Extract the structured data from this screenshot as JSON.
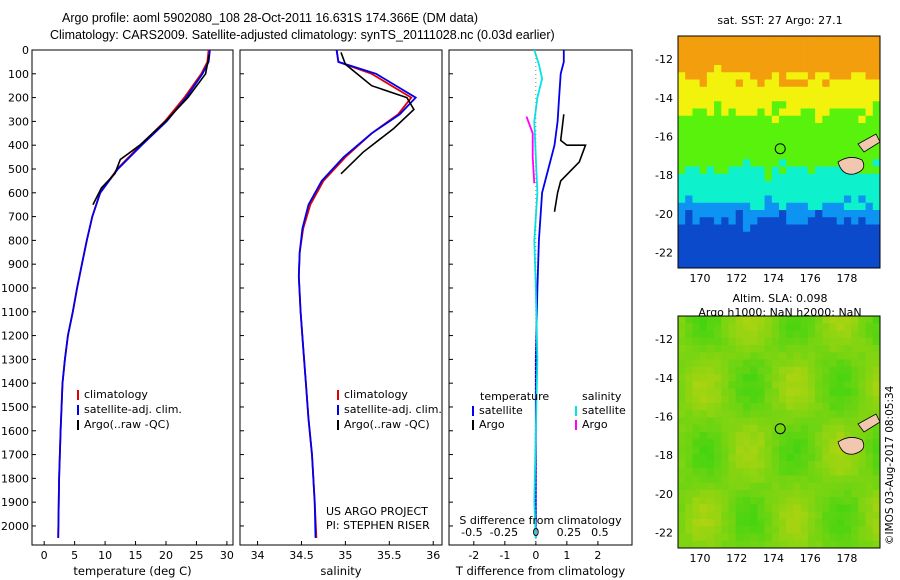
{
  "header": {
    "line1": "Argo profile: aoml 5902080_108 28-Oct-2011 16.631S 174.366E (DM data)",
    "line2": "Climatology: CARS2009. Satellite-adjusted climatology: synTS_20111028.nc (0.03d earlier)"
  },
  "credits": {
    "project": "US ARGO PROJECT",
    "pi": "PI: STEPHEN RISER",
    "watermark": "©IMOS 03-Aug-2017 08:05:34"
  },
  "colors": {
    "climatology": "#e00000",
    "satellite": "#0000ee",
    "argo": "#000000",
    "salinity_diff": "#00e5e5",
    "argo_salinity_diff": "#ff00ff"
  },
  "chart_data": [
    {
      "type": "line",
      "id": "temperature",
      "xlabel": "temperature (deg C)",
      "xlim": [
        -2,
        31
      ],
      "ylim": [
        2080,
        0
      ],
      "xticks": [
        0,
        5,
        10,
        15,
        20,
        25,
        30
      ],
      "yticks": [
        0,
        100,
        200,
        300,
        400,
        500,
        600,
        700,
        800,
        900,
        1000,
        1100,
        1200,
        1300,
        1400,
        1500,
        1600,
        1700,
        1800,
        1900,
        2000
      ],
      "legend": [
        "climatology",
        "satellite-adj. clim.",
        "Argo(..raw -QC)"
      ],
      "series": [
        {
          "name": "climatology",
          "color": "climatology",
          "x": [
            27.0,
            26.8,
            25.8,
            23.0,
            19.8,
            15.8,
            12.0,
            9.2,
            7.9,
            7.0,
            6.2,
            5.4,
            4.7,
            3.9,
            3.4,
            3.0,
            2.7,
            2.45,
            2.3
          ],
          "y": [
            0,
            50,
            100,
            200,
            300,
            400,
            500,
            600,
            700,
            800,
            900,
            1000,
            1100,
            1200,
            1300,
            1400,
            1600,
            1800,
            2050
          ]
        },
        {
          "name": "satellite-adj. clim.",
          "color": "satellite",
          "x": [
            27.2,
            27.0,
            26.0,
            23.3,
            20.1,
            16.0,
            12.1,
            9.2,
            7.9,
            7.0,
            6.2,
            5.4,
            4.7,
            3.9,
            3.4,
            3.0,
            2.7,
            2.45,
            2.3
          ],
          "y": [
            0,
            50,
            100,
            200,
            300,
            400,
            500,
            600,
            700,
            800,
            900,
            1000,
            1100,
            1200,
            1300,
            1400,
            1600,
            1800,
            2050
          ]
        },
        {
          "name": "Argo(..raw -QC)",
          "color": "argo",
          "x": [
            27.1,
            26.5,
            23.6,
            19.9,
            15.7,
            12.5,
            11.6,
            9.4,
            8.0
          ],
          "y": [
            20,
            100,
            200,
            300,
            400,
            460,
            520,
            580,
            650
          ]
        }
      ]
    },
    {
      "type": "line",
      "id": "salinity",
      "xlabel": "salinity",
      "xlim": [
        33.8,
        36.1
      ],
      "ylim": [
        2080,
        0
      ],
      "xticks": [
        34,
        34.5,
        35,
        35.5,
        36
      ],
      "legend": [
        "climatology",
        "satellite-adj. clim.",
        "Argo(..raw -QC)"
      ],
      "series": [
        {
          "name": "climatology",
          "color": "climatology",
          "x": [
            34.9,
            34.92,
            35.3,
            35.75,
            35.6,
            35.3,
            35.0,
            34.75,
            34.6,
            34.52,
            34.48,
            34.47,
            34.49,
            34.52,
            34.55,
            34.58,
            34.62,
            34.65,
            34.67
          ],
          "y": [
            0,
            50,
            100,
            200,
            270,
            350,
            450,
            550,
            650,
            750,
            850,
            950,
            1100,
            1250,
            1400,
            1550,
            1700,
            1900,
            2050
          ]
        },
        {
          "name": "satellite-adj. clim.",
          "color": "satellite",
          "x": [
            34.9,
            34.92,
            35.35,
            35.8,
            35.62,
            35.3,
            34.98,
            34.73,
            34.58,
            34.51,
            34.48,
            34.47,
            34.49,
            34.52,
            34.55,
            34.58,
            34.62,
            34.65,
            34.66
          ],
          "y": [
            0,
            50,
            100,
            200,
            270,
            350,
            450,
            550,
            650,
            750,
            850,
            950,
            1100,
            1250,
            1400,
            1550,
            1700,
            1900,
            2050
          ]
        },
        {
          "name": "Argo(..raw -QC)",
          "color": "argo",
          "x": [
            34.95,
            35.0,
            35.2,
            35.3,
            35.7,
            35.78,
            35.55,
            35.2,
            34.95
          ],
          "y": [
            10,
            60,
            120,
            150,
            200,
            250,
            330,
            430,
            520
          ]
        }
      ]
    },
    {
      "type": "line",
      "id": "difference",
      "xlabel": "T difference from climatology",
      "x2label": "S difference from climatology",
      "xlim": [
        -2.8,
        3.1
      ],
      "ylim": [
        2080,
        0
      ],
      "xticks": [
        -2,
        -1,
        0,
        1,
        2
      ],
      "x2ticks": [
        -0.5,
        -0.25,
        0,
        0.25,
        0.5
      ],
      "legend_temperature": [
        "temperature",
        "satellite",
        "Argo"
      ],
      "legend_salinity": [
        "salinity",
        "satellite",
        "Argo"
      ],
      "series": [
        {
          "name": "satellite",
          "color": "satellite",
          "x": [
            0.9,
            0.9,
            0.8,
            0.75,
            0.7,
            0.6,
            0.4,
            0.2,
            0.1,
            0.05,
            0.0,
            0.0,
            0.0,
            0.0
          ],
          "y": [
            0,
            50,
            100,
            200,
            300,
            400,
            500,
            600,
            800,
            1000,
            1300,
            1600,
            1900,
            2050
          ]
        },
        {
          "name": "Argo",
          "color": "argo",
          "x": [
            0.9,
            0.8,
            1.0,
            1.6,
            1.4,
            0.8,
            0.7,
            0.6
          ],
          "y": [
            270,
            380,
            400,
            400,
            470,
            550,
            600,
            680
          ]
        },
        {
          "name": "satellite",
          "color": "salinity_diff",
          "x": [
            -0.05,
            0.1,
            0.2,
            0.05,
            -0.05,
            0.0,
            0.05,
            -0.05,
            0.0,
            0.05,
            0.0,
            -0.05,
            0.0
          ],
          "y": [
            0,
            60,
            120,
            200,
            300,
            450,
            600,
            800,
            1000,
            1300,
            1600,
            1900,
            2050
          ]
        },
        {
          "name": "Argo",
          "color": "argo_salinity_diff",
          "x": [
            -0.3,
            -0.1,
            -0.1,
            -0.05
          ],
          "y": [
            280,
            350,
            450,
            560
          ]
        }
      ]
    },
    {
      "type": "heatmap",
      "id": "sst_map",
      "title": "sat. SST: 27 Argo: 27.1",
      "xticks": [
        170,
        172,
        174,
        176,
        178
      ],
      "yticks": [
        -12,
        -14,
        -16,
        -18,
        -20,
        -22
      ],
      "xlim": [
        168.8,
        179.8
      ],
      "ylim": [
        -22.8,
        -10.8
      ],
      "marker": {
        "lon": 174.366,
        "lat": -16.631
      }
    },
    {
      "type": "heatmap",
      "id": "sla_map",
      "title": "Altim. SLA: 0.098",
      "subtitle": "Argo h1000: NaN h2000: NaN",
      "xticks": [
        170,
        172,
        174,
        176,
        178
      ],
      "yticks": [
        -12,
        -14,
        -16,
        -18,
        -20,
        -22
      ],
      "xlim": [
        168.8,
        179.8
      ],
      "ylim": [
        -22.8,
        -10.8
      ],
      "marker": {
        "lon": 174.366,
        "lat": -16.631
      }
    }
  ]
}
